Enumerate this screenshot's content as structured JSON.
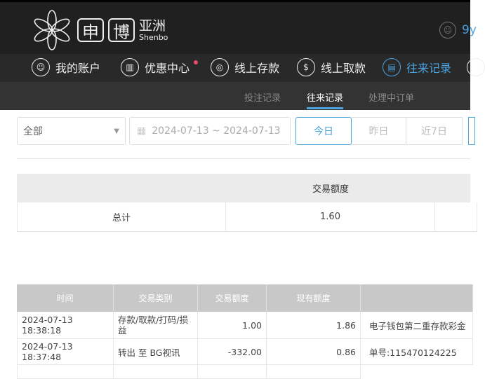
{
  "header": {
    "logo_char1": "申",
    "logo_char2": "博",
    "logo_cn": "亚洲",
    "logo_en": "Shenbo",
    "username": "9y"
  },
  "nav": [
    {
      "label": "我的账户",
      "icon": "user-icon"
    },
    {
      "label": "优惠中心",
      "icon": "gift-icon",
      "badge": true
    },
    {
      "label": "线上存款",
      "icon": "deposit-icon"
    },
    {
      "label": "线上取款",
      "icon": "withdraw-icon"
    },
    {
      "label": "往来记录",
      "icon": "record-icon",
      "active": true
    }
  ],
  "subtabs": [
    {
      "label": "投注记录"
    },
    {
      "label": "往来记录",
      "active": true
    },
    {
      "label": "处理中订单"
    }
  ],
  "filters": {
    "type": "全部",
    "date_range": "2024-07-13 ~ 2024-07-13",
    "quick": [
      "今日",
      "昨日",
      "近7日"
    ],
    "active_quick": "今日"
  },
  "summary": {
    "header": "交易额度",
    "label": "总计",
    "value": "1.60"
  },
  "table": {
    "columns": [
      "时间",
      "交易类别",
      "交易额度",
      "现有额度",
      ""
    ],
    "rows": [
      {
        "time": "2024-07-13 18:38:18",
        "type": "存款/取款/打码/损益",
        "amount": "1.00",
        "balance": "1.86",
        "note": "电子钱包第二重存款彩金"
      },
      {
        "time": "2024-07-13 18:37:48",
        "type": "转出 至 BG视讯",
        "amount": "-332.00",
        "balance": "0.86",
        "note": "单号:115470124225"
      }
    ]
  },
  "colors": {
    "accent": "#4aa3df",
    "header_bg": "#202020",
    "badge": "#e94a6a"
  }
}
